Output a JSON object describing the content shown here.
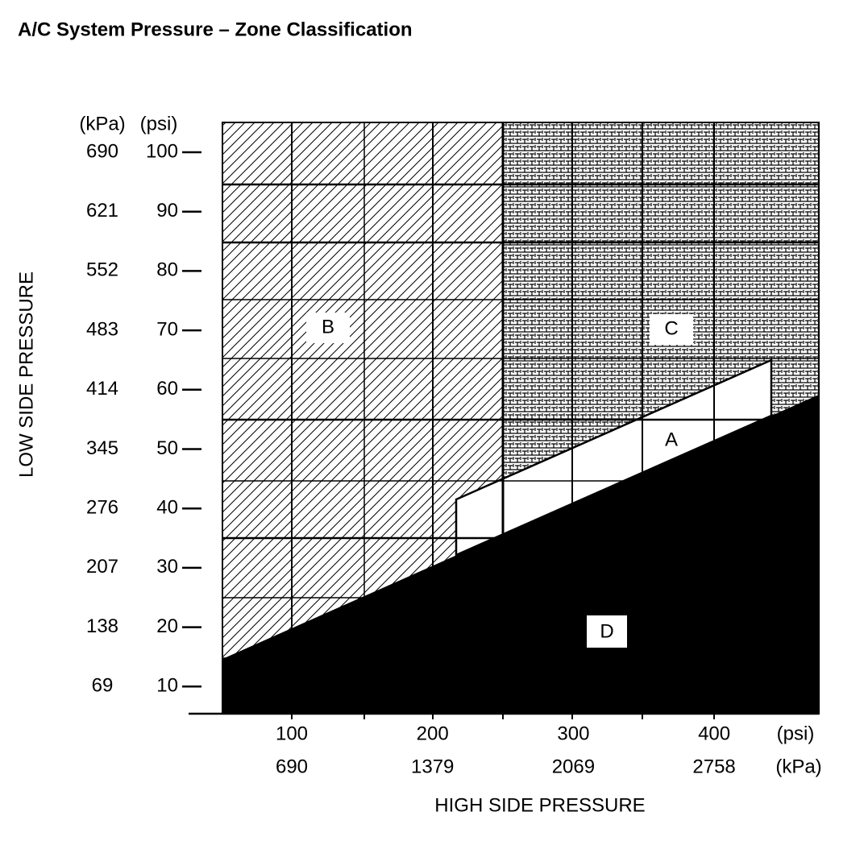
{
  "title": "A/C System Pressure – Zone Classification",
  "y_axis": {
    "label": "LOW SIDE PRESSURE",
    "unit_kpa": "(kPa)",
    "unit_psi": "(psi)",
    "ticks": [
      {
        "psi": "100",
        "kpa": "690"
      },
      {
        "psi": "90",
        "kpa": "621"
      },
      {
        "psi": "80",
        "kpa": "552"
      },
      {
        "psi": "70",
        "kpa": "483"
      },
      {
        "psi": "60",
        "kpa": "414"
      },
      {
        "psi": "50",
        "kpa": "345"
      },
      {
        "psi": "40",
        "kpa": "276"
      },
      {
        "psi": "30",
        "kpa": "207"
      },
      {
        "psi": "20",
        "kpa": "138"
      },
      {
        "psi": "10",
        "kpa": "69"
      }
    ]
  },
  "x_axis": {
    "label": "HIGH SIDE PRESSURE",
    "unit_psi": "(psi)",
    "unit_kpa": "(kPa)",
    "ticks": [
      {
        "psi": "100",
        "kpa": "690"
      },
      {
        "psi": "200",
        "kpa": "1379"
      },
      {
        "psi": "300",
        "kpa": "2069"
      },
      {
        "psi": "400",
        "kpa": "2758"
      }
    ]
  },
  "zones": [
    "A",
    "B",
    "C",
    "D"
  ]
}
